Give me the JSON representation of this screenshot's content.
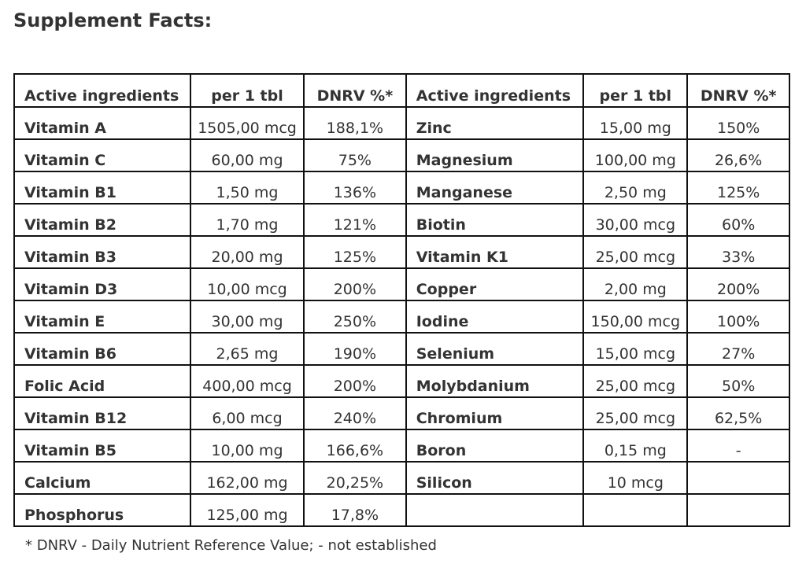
{
  "title": "Supplement Facts:",
  "headers": [
    "Active ingredients",
    "per 1 tbl",
    "DNRV %*",
    "Active ingredients",
    "per 1 tbl",
    "DNRV %*"
  ],
  "rows": [
    [
      "Vitamin A",
      "1505,00 mcg",
      "188,1%",
      "Zinc",
      "15,00 mg",
      "150%"
    ],
    [
      "Vitamin C",
      "60,00 mg",
      "75%",
      "Magnesium",
      "100,00 mg",
      "26,6%"
    ],
    [
      "Vitamin B1",
      "1,50 mg",
      "136%",
      "Manganese",
      "2,50 mg",
      "125%"
    ],
    [
      "Vitamin B2",
      "1,70 mg",
      "121%",
      "Biotin",
      "30,00 mcg",
      "60%"
    ],
    [
      "Vitamin B3",
      "20,00 mg",
      "125%",
      "Vitamin K1",
      "25,00 mcg",
      "33%"
    ],
    [
      "Vitamin D3",
      "10,00 mcg",
      "200%",
      "Copper",
      "2,00 mg",
      "200%"
    ],
    [
      "Vitamin E",
      "30,00 mg",
      "250%",
      "Iodine",
      "150,00 mcg",
      "100%"
    ],
    [
      "Vitamin B6",
      "2,65 mg",
      "190%",
      "Selenium",
      "15,00 mcg",
      "27%"
    ],
    [
      "Folic Acid",
      "400,00 mcg",
      "200%",
      "Molybdanium",
      "25,00 mcg",
      "50%"
    ],
    [
      "Vitamin B12",
      "6,00 mcg",
      "240%",
      "Chromium",
      "25,00 mcg",
      "62,5%"
    ],
    [
      "Vitamin B5",
      "10,00 mg",
      "166,6%",
      "Boron",
      "0,15 mg",
      "-"
    ],
    [
      "Calcium",
      "162,00 mg",
      "20,25%",
      "Silicon",
      "10 mcg",
      ""
    ],
    [
      "Phosphorus",
      "125,00 mg",
      "17,8%",
      "",
      "",
      ""
    ]
  ],
  "footnote": "* DNRV - Daily Nutrient Reference Value; - not established"
}
